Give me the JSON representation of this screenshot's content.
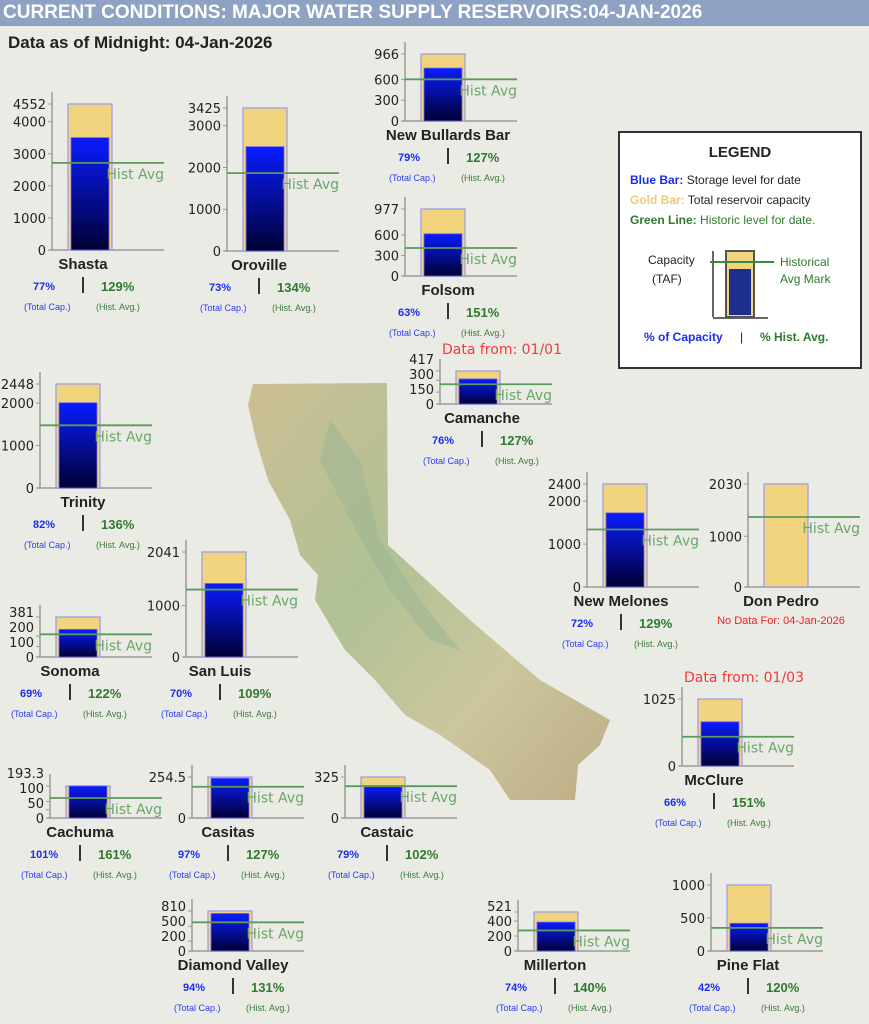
{
  "header": {
    "title": "CURRENT CONDITIONS: MAJOR WATER SUPPLY RESERVOIRS:04-JAN-2026"
  },
  "subtitle": "Data as of Midnight: 04-Jan-2026",
  "colors": {
    "storage_bar": "#0019ff",
    "capacity_bar": "#f2d47e",
    "hist_line": "#5a9a5a",
    "header_bg": "#8ea2c4",
    "note_red": "#ee3b3b"
  },
  "labels": {
    "hist_avg": "Hist Avg",
    "total_cap": "(Total Cap.)",
    "hist_avg_small": "(Hist. Avg.)"
  },
  "legend": {
    "title": "LEGEND",
    "blue_key": "Blue Bar:",
    "blue_text": "Storage level for date",
    "gold_key": "Gold Bar:",
    "gold_text": "Total reservoir capacity",
    "green_key": "Green Line:",
    "green_text": "Historic level for date.",
    "capacity_label": "Capacity",
    "capacity_unit": "(TAF)",
    "hist_mark_1": "Historical",
    "hist_mark_2": "Avg Mark",
    "pct_capacity": "% of Capacity",
    "separator": "|",
    "pct_hist": "% Hist. Avg."
  },
  "chart_data": [
    {
      "type": "bar",
      "name": "Shasta",
      "capacity": 4552,
      "storage": 3505,
      "hist_avg": 2717,
      "ticks": [
        "0",
        "1000",
        "2000",
        "3000",
        "4000",
        "4552"
      ],
      "pct_capacity": "77%",
      "pct_hist": "129%"
    },
    {
      "type": "bar",
      "name": "Oroville",
      "capacity": 3425,
      "storage": 2500,
      "hist_avg": 1866,
      "ticks": [
        "0",
        "1000",
        "2000",
        "3000",
        "3425"
      ],
      "pct_capacity": "73%",
      "pct_hist": "134%"
    },
    {
      "type": "bar",
      "name": "New Bullards Bar",
      "capacity": 966,
      "storage": 763,
      "hist_avg": 601,
      "ticks": [
        "0",
        "300",
        "600",
        "966"
      ],
      "pct_capacity": "79%",
      "pct_hist": "127%"
    },
    {
      "type": "bar",
      "name": "Folsom",
      "capacity": 977,
      "storage": 616,
      "hist_avg": 408,
      "ticks": [
        "0",
        "300",
        "600",
        "977"
      ],
      "pct_capacity": "63%",
      "pct_hist": "151%"
    },
    {
      "type": "bar",
      "name": "Camanche",
      "capacity": 417,
      "storage": 317,
      "hist_avg": 250,
      "ticks": [
        "0",
        "150",
        "300",
        "417"
      ],
      "pct_capacity": "76%",
      "pct_hist": "127%",
      "note": "Data from: 01/01"
    },
    {
      "type": "bar",
      "name": "Trinity",
      "capacity": 2448,
      "storage": 2007,
      "hist_avg": 1476,
      "ticks": [
        "0",
        "1000",
        "2000",
        "2448"
      ],
      "pct_capacity": "82%",
      "pct_hist": "136%"
    },
    {
      "type": "bar",
      "name": "New Melones",
      "capacity": 2400,
      "storage": 1728,
      "hist_avg": 1340,
      "ticks": [
        "0",
        "1000",
        "2000",
        "2400"
      ],
      "pct_capacity": "72%",
      "pct_hist": "129%"
    },
    {
      "type": "bar",
      "name": "Don Pedro",
      "capacity": 2030,
      "storage": null,
      "hist_avg": 1380,
      "ticks": [
        "0",
        "1000",
        "2030"
      ],
      "no_data": "No Data For: 04-Jan-2026"
    },
    {
      "type": "bar",
      "name": "Sonoma",
      "capacity": 381,
      "storage": 263,
      "hist_avg": 216,
      "ticks": [
        "0",
        "100",
        "200",
        "381"
      ],
      "pct_capacity": "69%",
      "pct_hist": "122%"
    },
    {
      "type": "bar",
      "name": "San Luis",
      "capacity": 2041,
      "storage": 1429,
      "hist_avg": 1311,
      "ticks": [
        "0",
        "1000",
        "2041"
      ],
      "pct_capacity": "70%",
      "pct_hist": "109%"
    },
    {
      "type": "bar",
      "name": "McClure",
      "capacity": 1025,
      "storage": 677,
      "hist_avg": 448,
      "ticks": [
        "0",
        "1025"
      ],
      "pct_capacity": "66%",
      "pct_hist": "151%",
      "note": "Data from: 01/03"
    },
    {
      "type": "bar",
      "name": "Cachuma",
      "capacity": 193.3,
      "storage": 195,
      "hist_avg": 121,
      "ticks": [
        "0",
        "50",
        "100",
        "193.3"
      ],
      "pct_capacity": "101%",
      "pct_hist": "161%"
    },
    {
      "type": "bar",
      "name": "Casitas",
      "capacity": 254.5,
      "storage": 247,
      "hist_avg": 194,
      "ticks": [
        "0",
        "254.5"
      ],
      "pct_capacity": "97%",
      "pct_hist": "127%"
    },
    {
      "type": "bar",
      "name": "Castaic",
      "capacity": 325,
      "storage": 257,
      "hist_avg": 252,
      "ticks": [
        "0",
        "325"
      ],
      "pct_capacity": "79%",
      "pct_hist": "102%"
    },
    {
      "type": "bar",
      "name": "Diamond Valley",
      "capacity": 810,
      "storage": 761,
      "hist_avg": 581,
      "ticks": [
        "0",
        "200",
        "500",
        "810"
      ],
      "pct_capacity": "94%",
      "pct_hist": "131%"
    },
    {
      "type": "bar",
      "name": "Millerton",
      "capacity": 521,
      "storage": 386,
      "hist_avg": 275,
      "ticks": [
        "0",
        "200",
        "400",
        "521"
      ],
      "pct_capacity": "74%",
      "pct_hist": "140%"
    },
    {
      "type": "bar",
      "name": "Pine Flat",
      "capacity": 1000,
      "storage": 420,
      "hist_avg": 350,
      "ticks": [
        "0",
        "500",
        "1000"
      ],
      "pct_capacity": "42%",
      "pct_hist": "120%"
    }
  ]
}
